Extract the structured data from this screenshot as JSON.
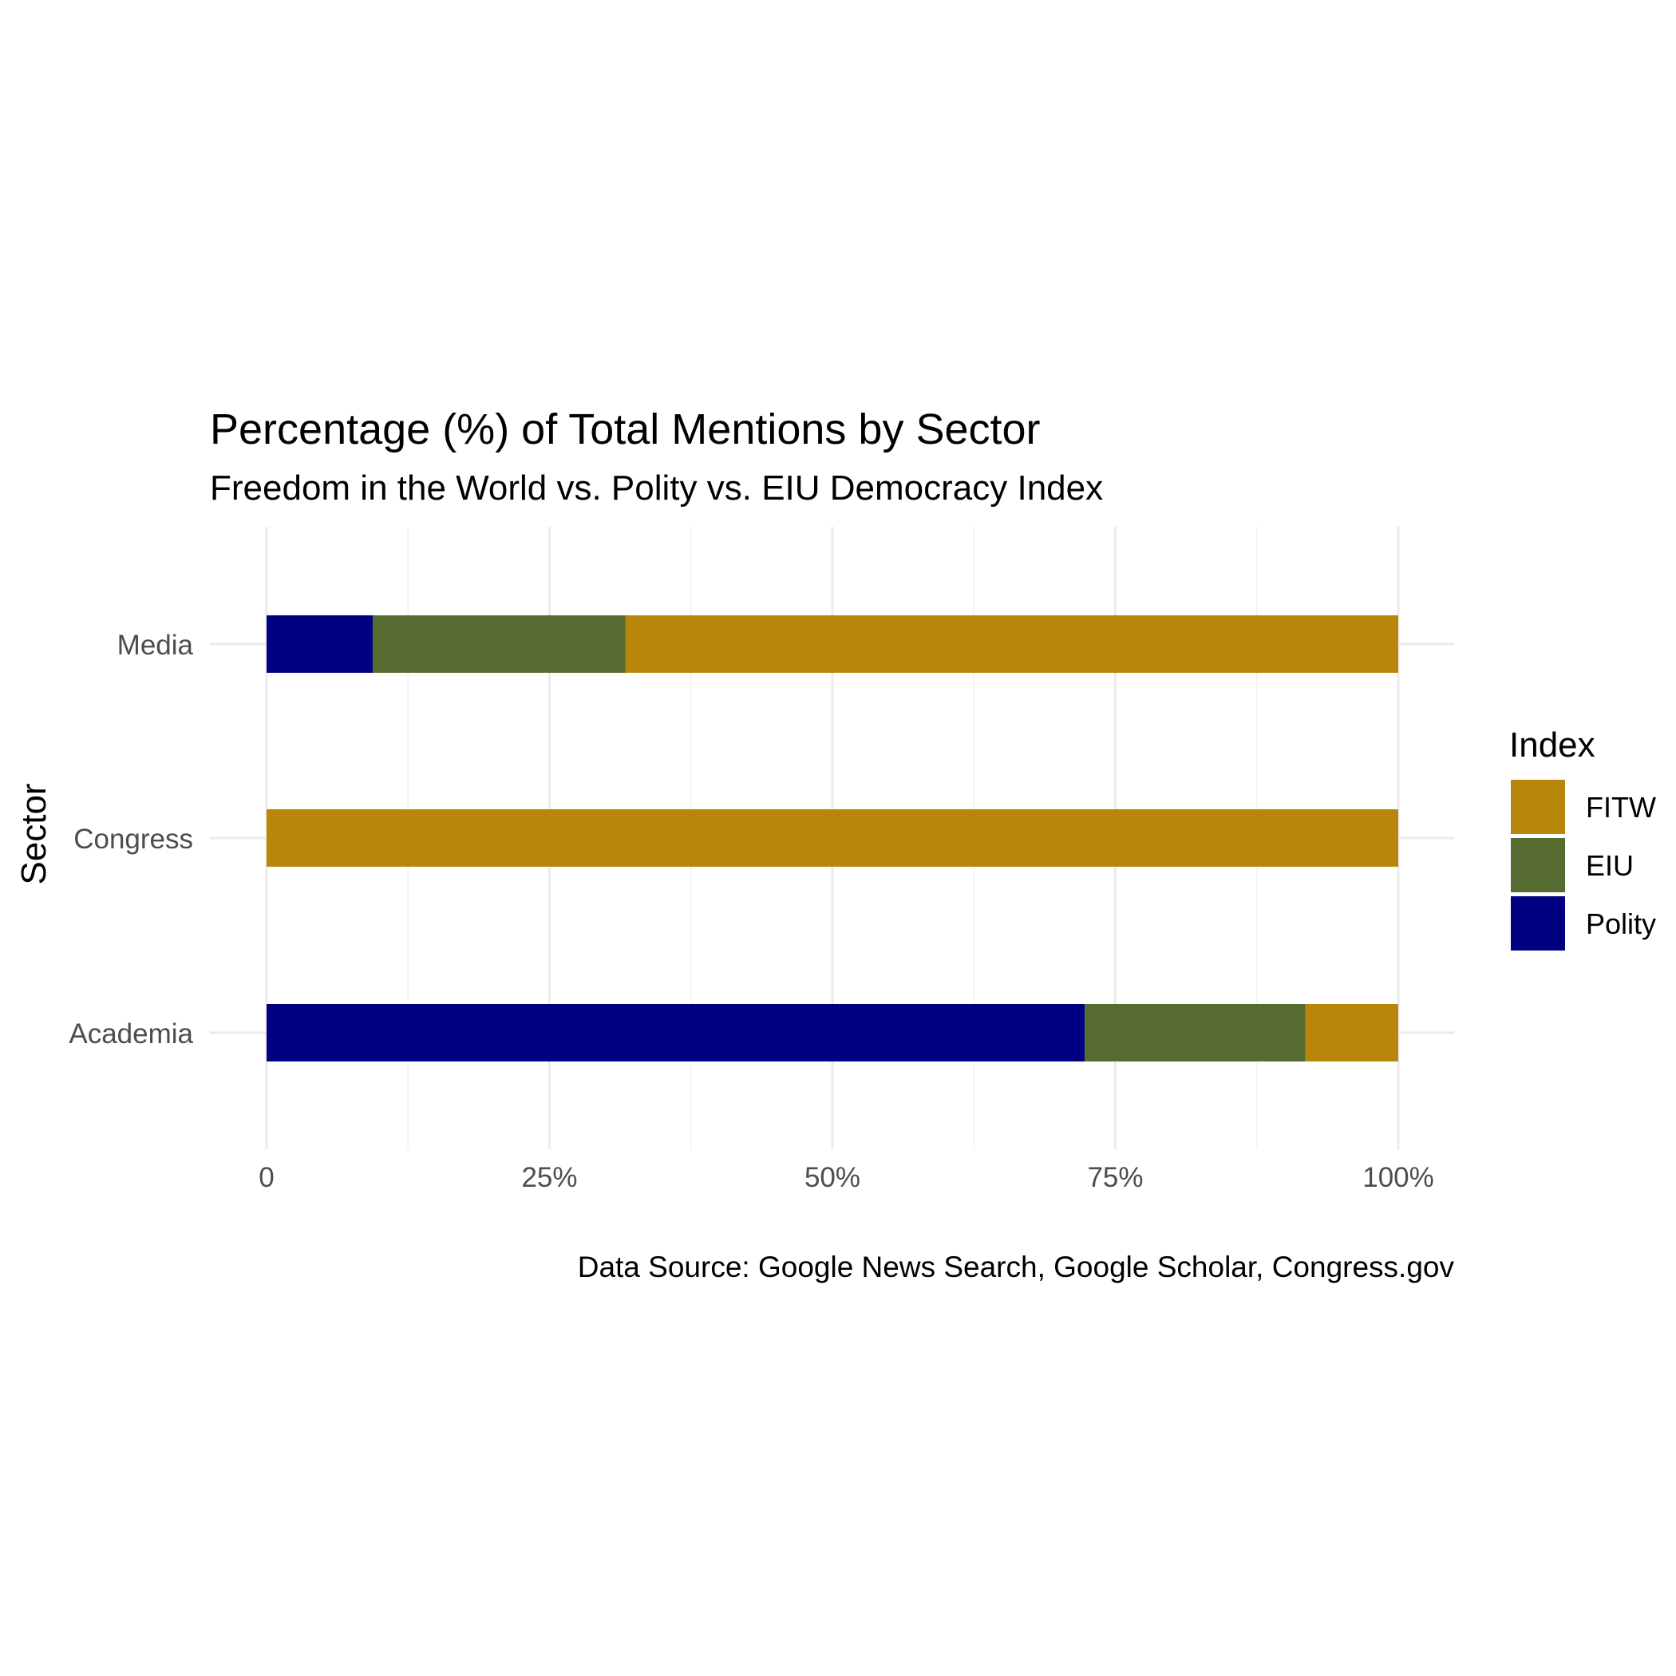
{
  "chart_data": {
    "type": "bar",
    "orientation": "horizontal",
    "stacked": true,
    "normalized": true,
    "title": "Percentage (%) of Total Mentions by Sector",
    "subtitle": "Freedom in the World vs. Polity vs. EIU Democracy Index",
    "caption": "Data Source: Google News Search, Google Scholar, Congress.gov",
    "ylabel": "Sector",
    "xlabel": "",
    "categories": [
      "Media",
      "Congress",
      "Academia"
    ],
    "series": [
      {
        "name": "Polity",
        "color": "#000080",
        "values": [
          9.4,
          0,
          72.3
        ]
      },
      {
        "name": "EIU",
        "color": "#556B2F",
        "values": [
          22.3,
          0,
          19.5
        ]
      },
      {
        "name": "FITW",
        "color": "#B8860B",
        "values": [
          68.3,
          100,
          8.2
        ]
      }
    ],
    "xlim": [
      0,
      100
    ],
    "x_ticks": [
      0,
      25,
      50,
      75,
      100
    ],
    "x_tick_labels": [
      "0",
      "25%",
      "50%",
      "75%",
      "100%"
    ],
    "grid": true,
    "legend": {
      "title": "Index",
      "position": "right",
      "order": [
        "FITW",
        "EIU",
        "Polity"
      ]
    }
  }
}
